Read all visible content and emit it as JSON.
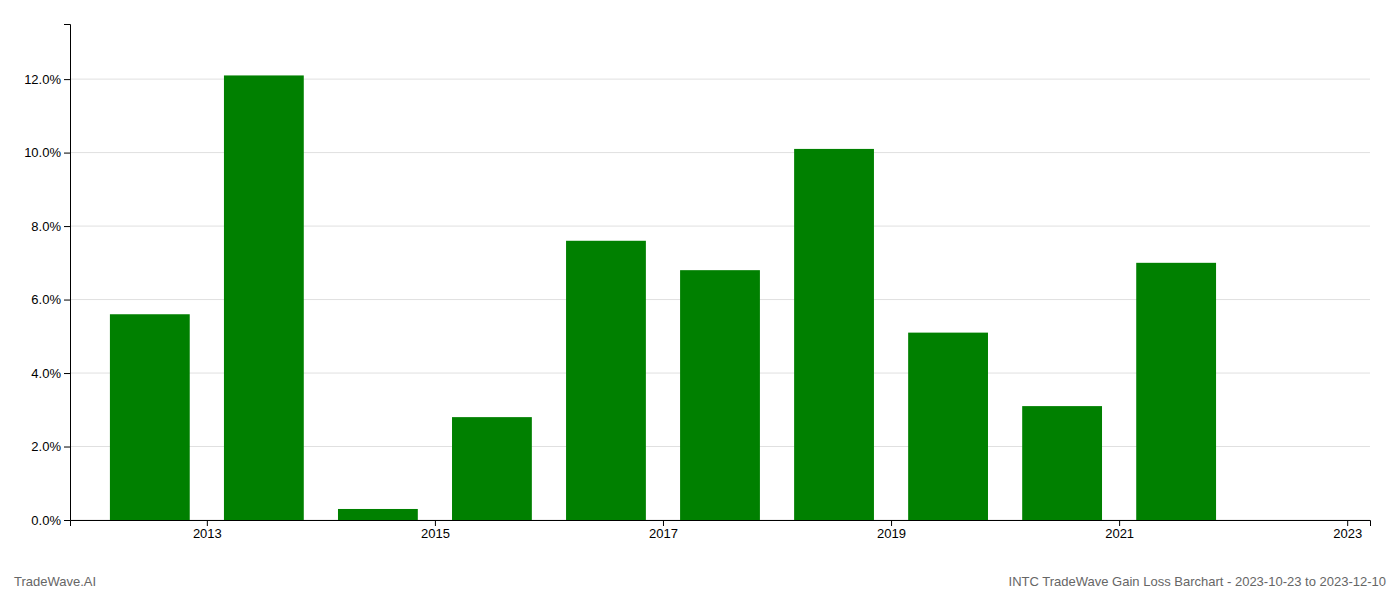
{
  "chart_data": {
    "type": "bar",
    "title": "INTC TradeWave Gain Loss Barchart - 2023-10-23 to 2023-12-10",
    "annotations": [
      "TradeWave.AI"
    ],
    "categories": [
      "2013",
      null,
      "2015",
      null,
      "2017",
      null,
      "2019",
      null,
      "2021",
      null,
      "2023"
    ],
    "values": [
      0.056,
      0.121,
      0.003,
      0.028,
      0.076,
      0.068,
      0.101,
      0.051,
      0.031,
      0.07,
      0.0
    ],
    "color": "#008000",
    "ylim": [
      0,
      0.135
    ],
    "yticks": [
      {
        "value": 0,
        "label": "0.0%"
      },
      {
        "value": 0.02,
        "label": "2.0%"
      },
      {
        "value": 0.04,
        "label": "4.0%"
      },
      {
        "value": 0.06,
        "label": "6.0%"
      },
      {
        "value": 0.08,
        "label": "8.0%"
      },
      {
        "value": 0.1,
        "label": "10.0%"
      },
      {
        "value": 0.12,
        "label": "12.0%"
      }
    ],
    "grid": true
  }
}
